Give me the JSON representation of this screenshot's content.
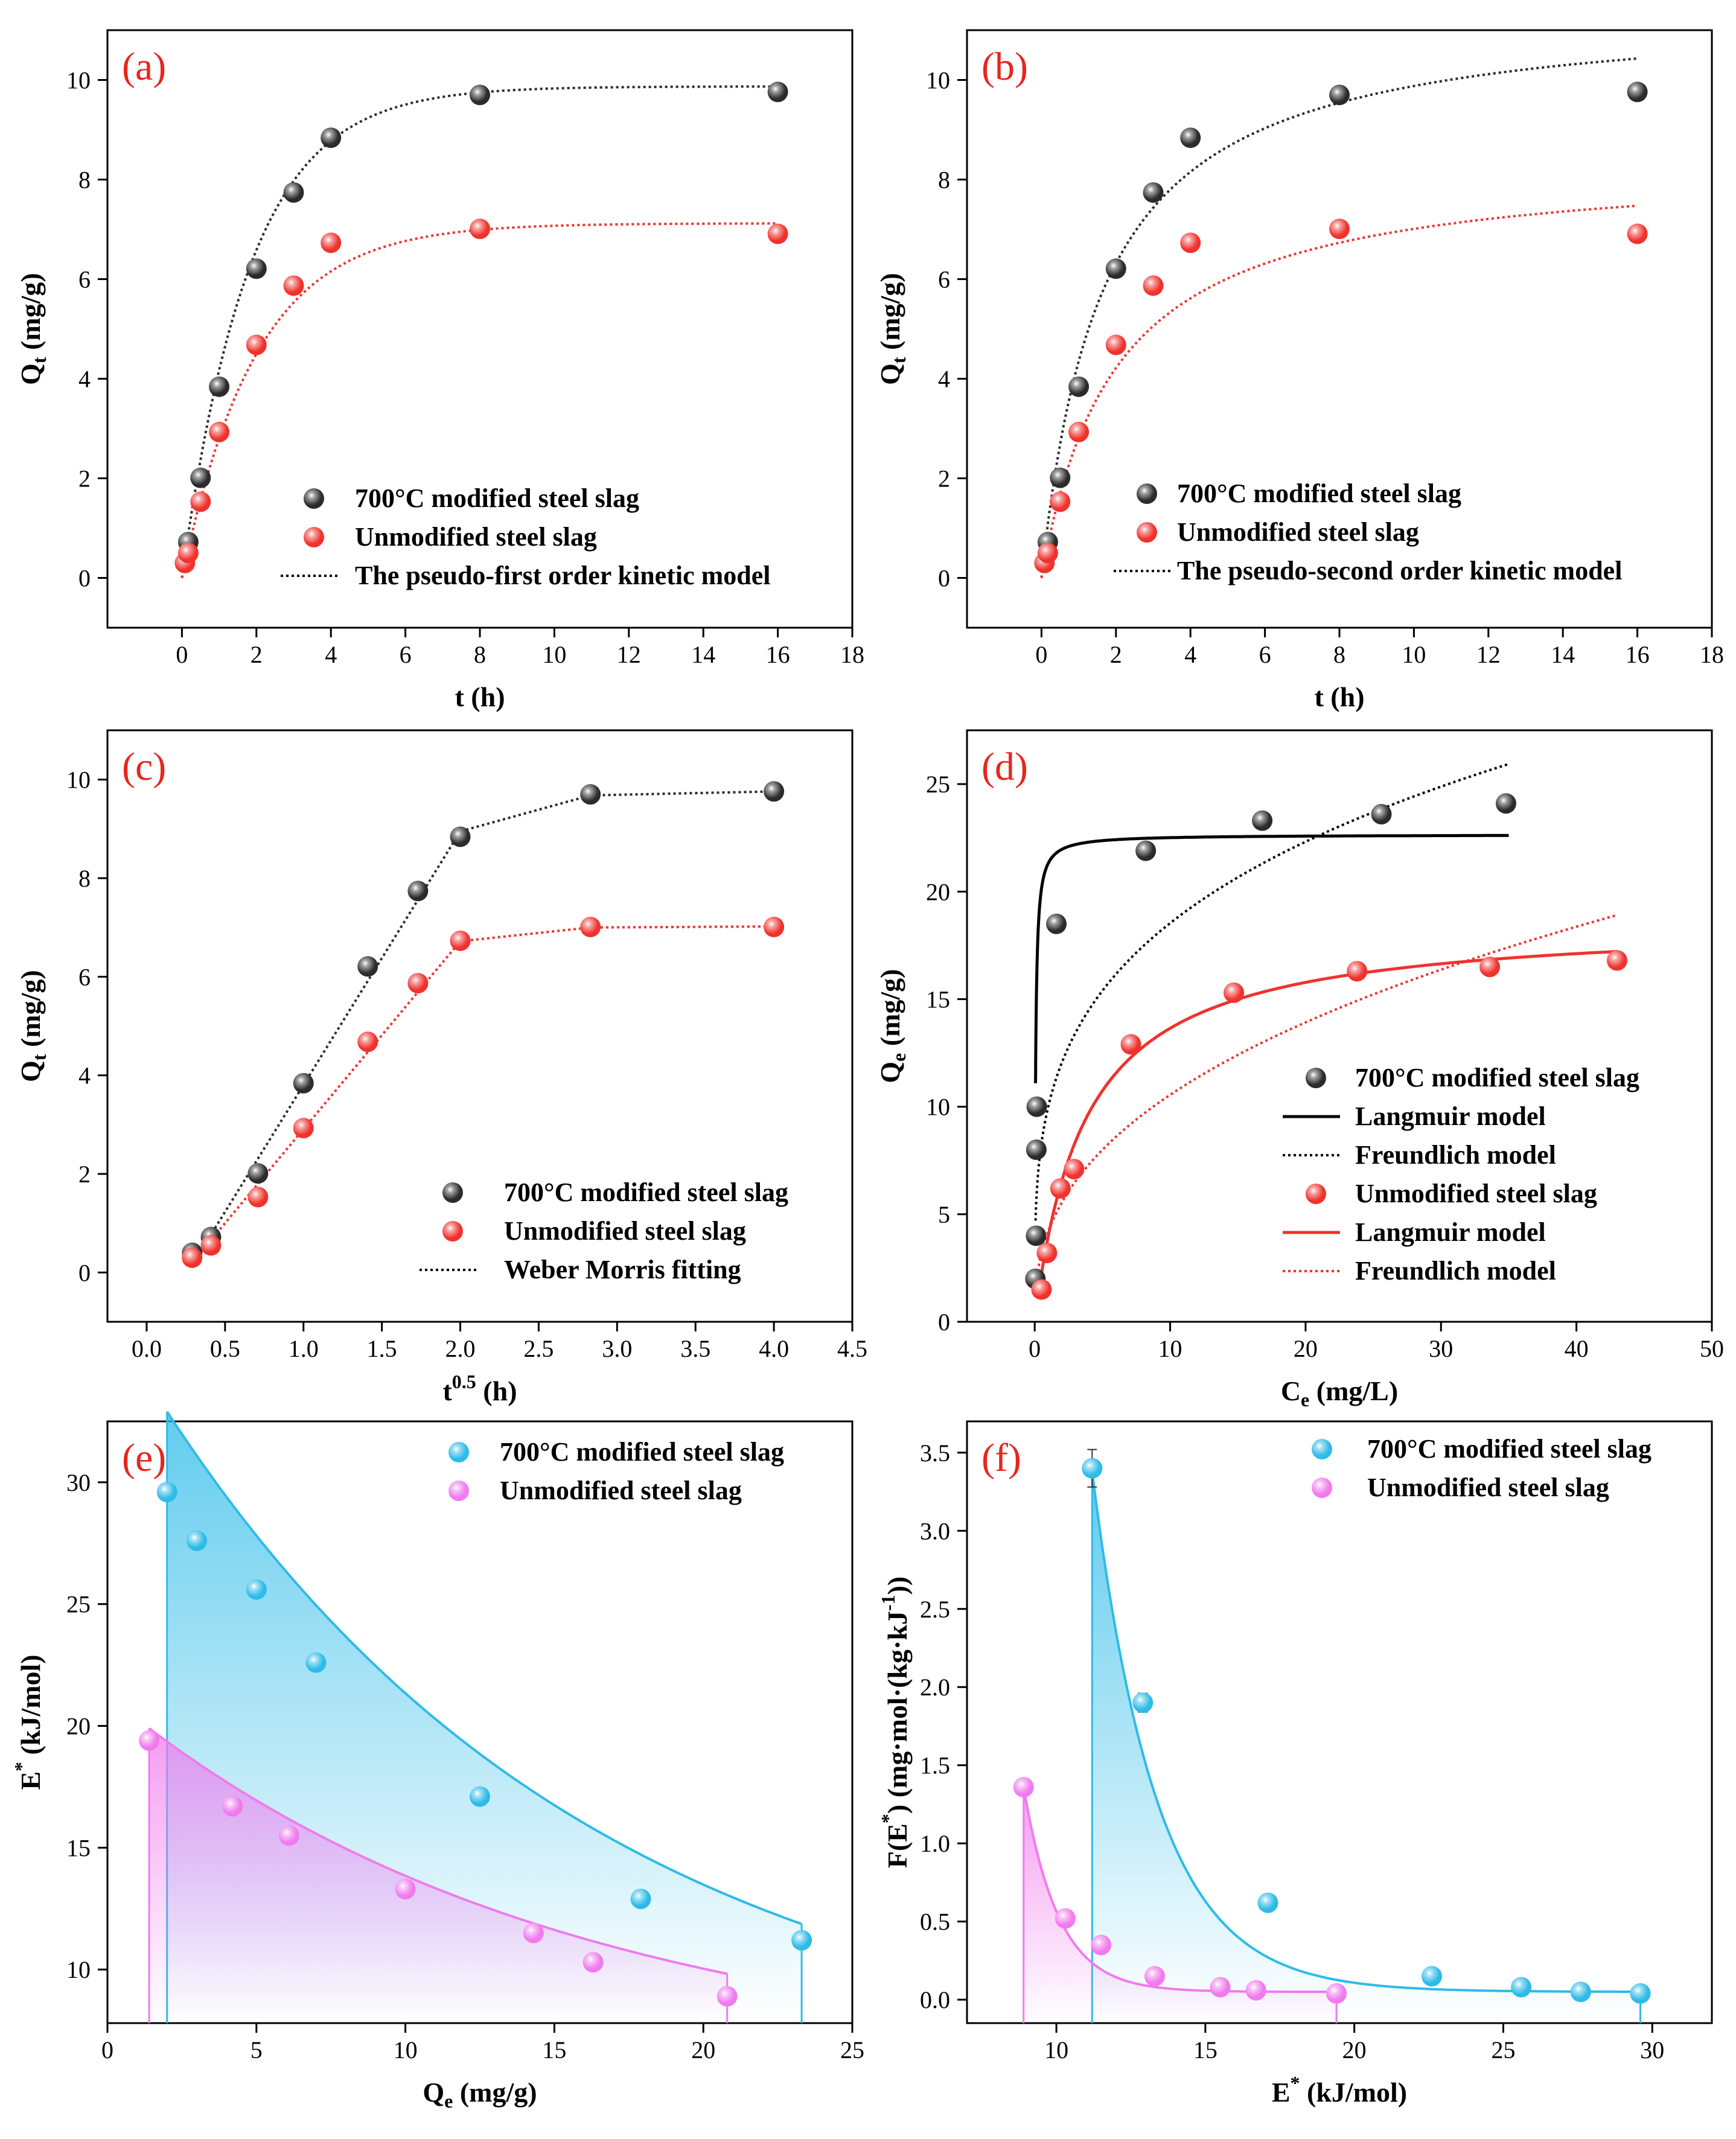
{
  "colors": {
    "black_series": "#2b2b2b",
    "red_series": "#f0322d",
    "cyan_series": "#2dbbe8",
    "magenta_series": "#f07aee",
    "panel_label": "#e8251c",
    "axes": "#000000"
  },
  "chart_data": [
    {
      "id": "a",
      "type": "scatter",
      "panel_label": "(a)",
      "xlabel": "t (h)",
      "ylabel_main": "Q",
      "ylabel_sub": "t",
      "ylabel_rest": " (mg/g)",
      "xlim": [
        -2,
        18
      ],
      "ylim": [
        -1,
        11
      ],
      "xticks": [
        0,
        2,
        4,
        6,
        8,
        10,
        12,
        14,
        16,
        18
      ],
      "xtick_labels": [
        "0",
        "2",
        "4",
        "6",
        "8",
        "10",
        "12",
        "14",
        "16",
        "18"
      ],
      "yticks": [
        0,
        2,
        4,
        6,
        8,
        10
      ],
      "ytick_labels": [
        "0",
        "2",
        "4",
        "6",
        "8",
        "10"
      ],
      "series": [
        {
          "name": "700°C modified steel slag",
          "color": "#2b2b2b",
          "x": [
            0.17,
            0.5,
            1,
            2,
            3,
            4,
            8,
            16
          ],
          "y": [
            0.72,
            2.01,
            3.84,
            6.21,
            7.74,
            8.84,
            9.7,
            9.76
          ]
        },
        {
          "name": "Unmodified steel slag",
          "color": "#f0322d",
          "x": [
            0.08,
            0.17,
            0.5,
            1,
            2,
            3,
            4,
            8,
            16
          ],
          "y": [
            0.3,
            0.5,
            1.53,
            2.93,
            4.68,
            5.87,
            6.73,
            7.01,
            6.91
          ]
        }
      ],
      "fits": [
        {
          "model": "pseudo-first",
          "qe": 9.87,
          "k": 0.55,
          "x0": 0,
          "x1": 16,
          "color": "#2b2b2b"
        },
        {
          "model": "pseudo-first",
          "qe": 7.12,
          "k": 0.5,
          "x0": 0,
          "x1": 16,
          "color": "#f0322d"
        }
      ],
      "legend": [
        {
          "label": "700°C modified steel slag",
          "kind": "ball",
          "color": "#2b2b2b"
        },
        {
          "label": "Unmodified steel slag",
          "kind": "ball",
          "color": "#f0322d"
        },
        {
          "label": "The pseudo-first order kinetic model",
          "kind": "dotted",
          "color": "#000000"
        }
      ]
    },
    {
      "id": "b",
      "type": "scatter",
      "panel_label": "(b)",
      "xlabel": "t (h)",
      "ylabel_main": "Q",
      "ylabel_sub": "t",
      "ylabel_rest": " (mg/g)",
      "xlim": [
        -2,
        18
      ],
      "ylim": [
        -1,
        11
      ],
      "xticks": [
        0,
        2,
        4,
        6,
        8,
        10,
        12,
        14,
        16,
        18
      ],
      "xtick_labels": [
        "0",
        "2",
        "4",
        "6",
        "8",
        "10",
        "12",
        "14",
        "16",
        "18"
      ],
      "yticks": [
        0,
        2,
        4,
        6,
        8,
        10
      ],
      "ytick_labels": [
        "0",
        "2",
        "4",
        "6",
        "8",
        "10"
      ],
      "series": [
        {
          "name": "700°C modified steel slag",
          "color": "#2b2b2b",
          "x": [
            0.17,
            0.5,
            1,
            2,
            3,
            4,
            8,
            16
          ],
          "y": [
            0.72,
            2.01,
            3.84,
            6.21,
            7.74,
            8.84,
            9.7,
            9.76
          ]
        },
        {
          "name": "Unmodified steel slag",
          "color": "#f0322d",
          "x": [
            0.08,
            0.17,
            0.5,
            1,
            2,
            3,
            4,
            8,
            16
          ],
          "y": [
            0.3,
            0.5,
            1.53,
            2.93,
            4.68,
            5.87,
            6.73,
            7.01,
            6.91
          ]
        }
      ],
      "fits": [
        {
          "model": "pseudo-second",
          "qe": 11.5,
          "k": 0.053,
          "x0": 0,
          "x1": 16,
          "color": "#2b2b2b"
        },
        {
          "model": "pseudo-second",
          "qe": 8.4,
          "k": 0.06,
          "x0": 0,
          "x1": 16,
          "color": "#f0322d"
        }
      ],
      "legend": [
        {
          "label": "700°C modified steel slag",
          "kind": "ball",
          "color": "#2b2b2b"
        },
        {
          "label": "Unmodified steel slag",
          "kind": "ball",
          "color": "#f0322d"
        },
        {
          "label": "The pseudo-second order kinetic model",
          "kind": "dotted",
          "color": "#000000"
        }
      ]
    },
    {
      "id": "c",
      "type": "scatter",
      "panel_label": "(c)",
      "xlabel": "t",
      "xlabel_sup": "0.5",
      "xlabel_rest": " (h)",
      "ylabel_main": "Q",
      "ylabel_sub": "t",
      "ylabel_rest": " (mg/g)",
      "xlim": [
        -0.25,
        4.5
      ],
      "ylim": [
        -1,
        11
      ],
      "xticks": [
        0,
        0.5,
        1,
        1.5,
        2,
        2.5,
        3,
        3.5,
        4,
        4.5
      ],
      "xtick_labels": [
        "0.0",
        "0.5",
        "1.0",
        "1.5",
        "2.0",
        "2.5",
        "3.0",
        "3.5",
        "4.0",
        "4.5"
      ],
      "yticks": [
        0,
        2,
        4,
        6,
        8,
        10
      ],
      "ytick_labels": [
        "0",
        "2",
        "4",
        "6",
        "8",
        "10"
      ],
      "series": [
        {
          "name": "700°C modified steel slag",
          "color": "#2b2b2b",
          "x": [
            0.29,
            0.41,
            0.71,
            1.0,
            1.41,
            1.73,
            2.0,
            2.83,
            4.0
          ],
          "y": [
            0.4,
            0.72,
            2.01,
            3.84,
            6.21,
            7.74,
            8.84,
            9.7,
            9.76
          ]
        },
        {
          "name": "Unmodified steel slag",
          "color": "#f0322d",
          "x": [
            0.29,
            0.41,
            0.71,
            1.0,
            1.41,
            1.73,
            2.0,
            2.83,
            4.0
          ],
          "y": [
            0.3,
            0.55,
            1.53,
            2.93,
            4.68,
            5.87,
            6.73,
            7.01,
            7.01
          ]
        }
      ],
      "fits": [
        {
          "model": "polyline",
          "color": "#2b2b2b",
          "x": [
            0.29,
            2.0,
            2.83,
            4.0
          ],
          "y": [
            0.15,
            8.95,
            9.68,
            9.76
          ]
        },
        {
          "model": "polyline",
          "color": "#f0322d",
          "x": [
            0.29,
            2.0,
            2.83,
            4.0
          ],
          "y": [
            0.2,
            6.72,
            7.0,
            7.02
          ]
        }
      ],
      "legend": [
        {
          "label": "700°C modified steel slag",
          "kind": "ball",
          "color": "#2b2b2b"
        },
        {
          "label": "Unmodified steel slag",
          "kind": "ball",
          "color": "#f0322d"
        },
        {
          "label": "Weber Morris fitting",
          "kind": "dotted",
          "color": "#000000"
        }
      ]
    },
    {
      "id": "d",
      "type": "scatter",
      "panel_label": "(d)",
      "xlabel": "C",
      "xlabel_sub": "e",
      "xlabel_rest": " (mg/L)",
      "ylabel_main": "Q",
      "ylabel_sub": "e",
      "ylabel_rest": " (mg/g)",
      "xlim": [
        -5,
        50
      ],
      "ylim": [
        0,
        27.5
      ],
      "xticks": [
        0,
        10,
        20,
        30,
        40,
        50
      ],
      "xtick_labels": [
        "0",
        "10",
        "20",
        "30",
        "40",
        "50"
      ],
      "yticks": [
        0,
        5,
        10,
        15,
        20,
        25
      ],
      "ytick_labels": [
        "0",
        "5",
        "10",
        "15",
        "20",
        "25"
      ],
      "series": [
        {
          "name": "700°C modified steel slag",
          "color": "#2b2b2b",
          "x": [
            0.05,
            0.1,
            0.12,
            0.15,
            1.6,
            8.2,
            16.8,
            25.6,
            34.8
          ],
          "y": [
            2.0,
            4.0,
            8.0,
            10.0,
            18.5,
            21.9,
            23.3,
            23.6,
            24.1
          ]
        },
        {
          "name": "Unmodified steel slag",
          "color": "#f0322d",
          "x": [
            0.5,
            0.9,
            1.9,
            2.9,
            7.1,
            14.7,
            23.8,
            33.6,
            43.0
          ],
          "y": [
            1.5,
            3.2,
            6.2,
            7.1,
            12.9,
            15.3,
            16.3,
            16.5,
            16.8
          ]
        }
      ],
      "fits": [
        {
          "model": "langmuir",
          "qmax": 22.65,
          "KL": 16.0,
          "x0": 0.06,
          "x1": 35,
          "color": "#000000",
          "dash": false
        },
        {
          "model": "freundlich",
          "KF": 10.0,
          "inv_n": 0.268,
          "x0": 0.06,
          "x1": 35,
          "color": "#000000",
          "dash": true
        },
        {
          "model": "langmuir",
          "qmax": 18.7,
          "KL": 0.27,
          "x0": 0.3,
          "x1": 43,
          "color": "#f0322d",
          "dash": false
        },
        {
          "model": "freundlich",
          "KF": 4.2,
          "inv_n": 0.4,
          "x0": 0.3,
          "x1": 43,
          "color": "#f0322d",
          "dash": true
        }
      ],
      "legend": [
        {
          "label": "700°C modified steel slag",
          "kind": "ball",
          "color": "#2b2b2b"
        },
        {
          "label": "Langmuir  model",
          "kind": "solid",
          "color": "#000000"
        },
        {
          "label": "Freundlich model",
          "kind": "dotted",
          "color": "#000000"
        },
        {
          "label": "Unmodified steel slag",
          "kind": "ball",
          "color": "#f0322d"
        },
        {
          "label": "Langmuir model",
          "kind": "solid",
          "color": "#f0322d"
        },
        {
          "label": "Freundlich model",
          "kind": "dotted",
          "color": "#f0322d"
        }
      ]
    },
    {
      "id": "e",
      "type": "area",
      "panel_label": "(e)",
      "xlabel": "Q",
      "xlabel_sub": "e",
      "xlabel_rest": " (mg/g)",
      "ylabel_main": "E",
      "ylabel_sup": "*",
      "ylabel_rest": " (kJ/mol)",
      "xlim": [
        0,
        25
      ],
      "ylim": [
        7.8,
        32.5
      ],
      "xticks": [
        0,
        5,
        10,
        15,
        20,
        25
      ],
      "xtick_labels": [
        "0",
        "5",
        "10",
        "15",
        "20",
        "25"
      ],
      "yticks": [
        10,
        15,
        20,
        25,
        30
      ],
      "ytick_labels": [
        "10",
        "15",
        "20",
        "25",
        "30"
      ],
      "series": [
        {
          "name": "700°C modified steel slag",
          "color": "#2dbbe8",
          "x": [
            2.0,
            3.0,
            5.0,
            7.0,
            12.5,
            17.9,
            23.3
          ],
          "y": [
            29.6,
            27.6,
            25.6,
            22.6,
            17.1,
            12.9,
            11.2
          ]
        },
        {
          "name": "Unmodified steel slag",
          "color": "#f07aee",
          "x": [
            1.4,
            4.2,
            6.1,
            10.0,
            14.3,
            16.3,
            20.8
          ],
          "y": [
            19.4,
            16.7,
            15.5,
            13.3,
            11.5,
            10.3,
            8.9
          ]
        }
      ],
      "fits": [
        {
          "model": "exp-area",
          "y_inf": 5.5,
          "a": 27.4,
          "b": 0.0685,
          "x0": 2.0,
          "x1": 23.3,
          "color": "#2dbbe8"
        },
        {
          "model": "exp-area",
          "y_inf": 6.0,
          "a": 13.9,
          "b": 0.0665,
          "x0": 1.4,
          "x1": 20.8,
          "color": "#f07aee"
        }
      ],
      "legend": [
        {
          "label": "700°C modified steel slag",
          "kind": "ball",
          "color": "#2dbbe8"
        },
        {
          "label": "Unmodified steel slag",
          "kind": "ball",
          "color": "#f07aee"
        }
      ]
    },
    {
      "id": "f",
      "type": "area",
      "panel_label": "(f)",
      "xlabel": "E",
      "xlabel_sup": "*",
      "xlabel_rest": " (kJ/mol)",
      "ylabel_text": "F(E*) (mg·mol·(kg·kJ-1))",
      "xlim": [
        7,
        32
      ],
      "ylim": [
        -0.15,
        3.7
      ],
      "xticks": [
        10,
        15,
        20,
        25,
        30
      ],
      "xtick_labels": [
        "10",
        "15",
        "20",
        "25",
        "30"
      ],
      "yticks": [
        0,
        0.5,
        1,
        1.5,
        2,
        2.5,
        3,
        3.5
      ],
      "ytick_labels": [
        "0.0",
        "0.5",
        "1.0",
        "1.5",
        "2.0",
        "2.5",
        "3.0",
        "3.5"
      ],
      "series": [
        {
          "name": "700°C modified steel slag",
          "color": "#2dbbe8",
          "x": [
            11.2,
            12.9,
            17.1,
            22.6,
            25.6,
            27.6,
            29.6
          ],
          "y": [
            3.4,
            1.9,
            0.62,
            0.15,
            0.08,
            0.05,
            0.04
          ],
          "err": [
            0.12,
            0.06,
            0.03,
            0.02,
            0.01,
            0.01,
            0.01
          ]
        },
        {
          "name": "Unmodified steel slag",
          "color": "#f07aee",
          "x": [
            8.9,
            10.3,
            11.5,
            13.3,
            15.5,
            16.7,
            19.4
          ],
          "y": [
            1.36,
            0.52,
            0.35,
            0.15,
            0.08,
            0.06,
            0.04
          ],
          "err": [
            0.04,
            0.03,
            0.02,
            0.01,
            0.01,
            0.01,
            0.01
          ]
        }
      ],
      "fits": [
        {
          "model": "exp-area",
          "y_inf": 0.05,
          "a": 3.33,
          "b": 0.46,
          "x0": 11.2,
          "x1": 29.6,
          "color": "#2dbbe8"
        },
        {
          "model": "exp-area",
          "y_inf": 0.05,
          "a": 1.31,
          "b": 0.85,
          "x0": 8.9,
          "x1": 19.4,
          "color": "#f07aee"
        }
      ],
      "legend": [
        {
          "label": "700°C modified steel slag",
          "kind": "ball",
          "color": "#2dbbe8"
        },
        {
          "label": "Unmodified steel slag",
          "kind": "ball",
          "color": "#f07aee"
        }
      ]
    }
  ]
}
